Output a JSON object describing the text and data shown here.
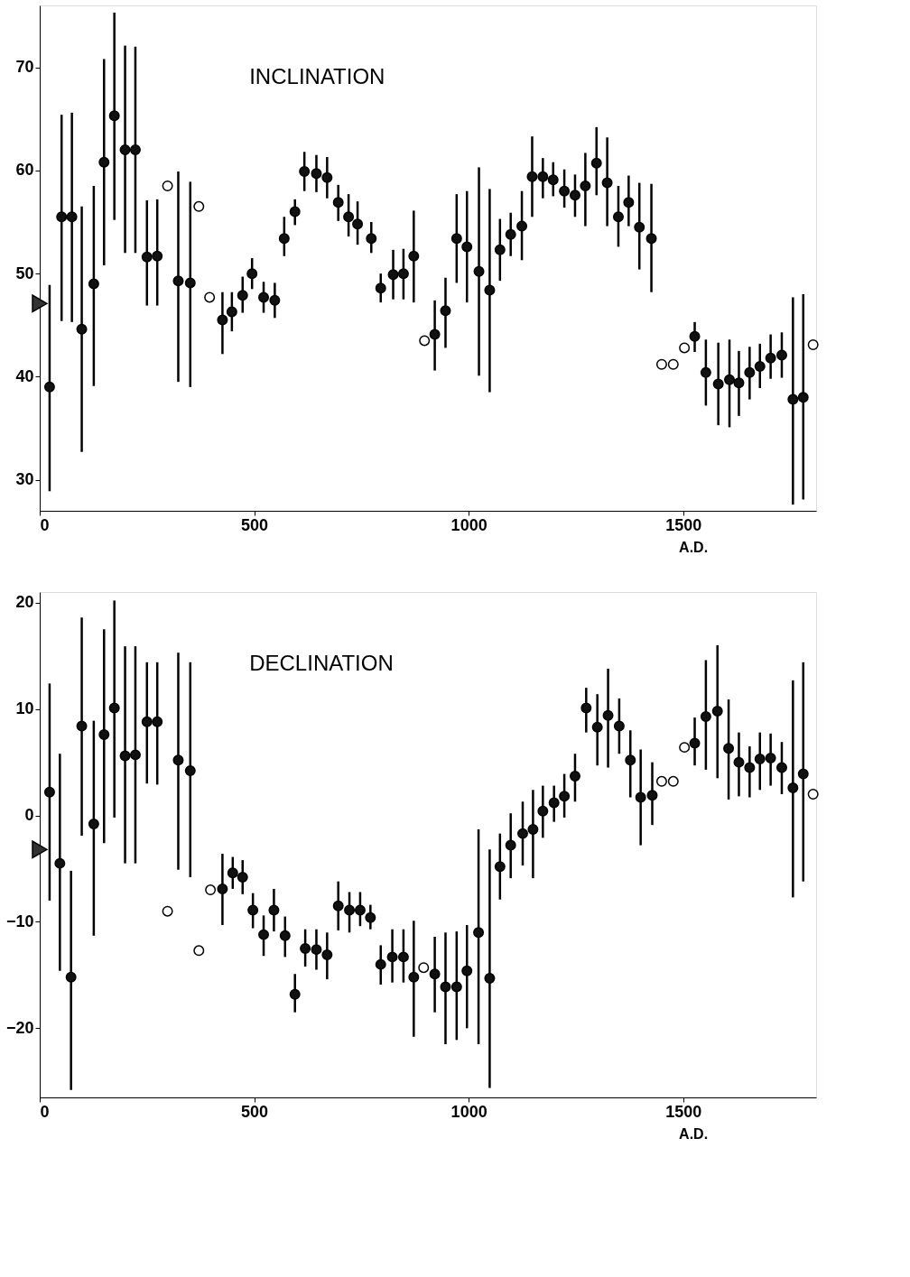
{
  "chart_data": [
    {
      "type": "scatter",
      "title": "INCLINATION",
      "xlabel": "A.D.",
      "xlim": [
        0,
        1810
      ],
      "xticks": [
        0,
        500,
        1000,
        1500
      ],
      "ylim": [
        27,
        76
      ],
      "yticks": [
        30,
        40,
        50,
        60,
        70
      ],
      "grid": false,
      "series": [
        {
          "color": "#111111",
          "marker": "circle",
          "x": [
            23,
            51,
            75,
            98,
            126,
            150,
            174,
            199,
            223,
            250,
            274,
            323,
            351,
            426,
            448,
            473,
            495,
            522,
            548,
            570,
            595,
            617,
            645,
            670,
            696,
            720,
            741,
            773,
            795,
            824,
            848,
            872,
            921,
            946,
            972,
            996,
            1024,
            1049,
            1073,
            1098,
            1124,
            1148,
            1173,
            1197,
            1223,
            1248,
            1272,
            1298,
            1323,
            1349,
            1373,
            1398,
            1426,
            1527,
            1553,
            1582,
            1608,
            1630,
            1655,
            1679,
            1704,
            1730,
            1756,
            1780
          ],
          "values": [
            39.0,
            55.5,
            55.5,
            44.6,
            49.0,
            60.8,
            65.3,
            62.0,
            62.0,
            51.6,
            51.7,
            49.3,
            49.1,
            45.5,
            46.3,
            47.9,
            50.0,
            47.7,
            47.4,
            53.4,
            56.0,
            59.9,
            59.7,
            59.3,
            56.9,
            55.5,
            54.8,
            53.4,
            48.6,
            49.9,
            50.0,
            51.7,
            44.1,
            46.4,
            53.4,
            52.6,
            50.2,
            48.4,
            52.3,
            53.8,
            54.6,
            59.4,
            59.4,
            59.1,
            58.0,
            57.6,
            58.5,
            60.7,
            58.8,
            55.5,
            56.9,
            54.5,
            53.4,
            43.9,
            40.4,
            39.3,
            39.7,
            39.4,
            40.4,
            41.0,
            41.8,
            42.1,
            37.8,
            38.0
          ],
          "errors": [
            [
              28.9,
              48.9
            ],
            [
              45.4,
              65.4
            ],
            [
              45.3,
              65.6
            ],
            [
              32.7,
              56.5
            ],
            [
              39.1,
              58.5
            ],
            [
              50.8,
              70.8
            ],
            [
              55.2,
              75.3
            ],
            [
              52.0,
              72.1
            ],
            [
              52.0,
              72.0
            ],
            [
              46.9,
              57.1
            ],
            [
              46.9,
              57.2
            ],
            [
              39.5,
              59.9
            ],
            [
              39.0,
              58.9
            ],
            [
              42.2,
              48.2
            ],
            [
              44.4,
              48.2
            ],
            [
              46.2,
              49.7
            ],
            [
              48.5,
              51.5
            ],
            [
              46.2,
              49.2
            ],
            [
              45.7,
              49.1
            ],
            [
              51.7,
              55.5
            ],
            [
              54.7,
              57.2
            ],
            [
              58.0,
              61.8
            ],
            [
              57.9,
              61.5
            ],
            [
              57.3,
              61.3
            ],
            [
              55.1,
              58.6
            ],
            [
              53.6,
              57.7
            ],
            [
              52.8,
              57.0
            ],
            [
              52.0,
              55.0
            ],
            [
              47.2,
              50.0
            ],
            [
              47.5,
              52.3
            ],
            [
              47.5,
              52.4
            ],
            [
              47.2,
              56.1
            ],
            [
              40.6,
              47.4
            ],
            [
              42.8,
              49.6
            ],
            [
              49.1,
              57.7
            ],
            [
              47.2,
              58.0
            ],
            [
              40.1,
              60.3
            ],
            [
              38.5,
              58.2
            ],
            [
              49.3,
              55.3
            ],
            [
              51.7,
              55.9
            ],
            [
              51.3,
              58.0
            ],
            [
              55.5,
              63.3
            ],
            [
              57.3,
              61.2
            ],
            [
              57.5,
              60.8
            ],
            [
              56.4,
              60.1
            ],
            [
              55.5,
              59.6
            ],
            [
              54.6,
              61.7
            ],
            [
              57.6,
              64.2
            ],
            [
              54.6,
              63.2
            ],
            [
              52.6,
              58.5
            ],
            [
              54.6,
              59.5
            ],
            [
              50.4,
              58.8
            ],
            [
              48.2,
              58.7
            ],
            [
              42.4,
              45.3
            ],
            [
              37.2,
              43.6
            ],
            [
              35.3,
              43.3
            ],
            [
              35.1,
              43.6
            ],
            [
              36.2,
              42.5
            ],
            [
              37.8,
              42.9
            ],
            [
              38.9,
              43.2
            ],
            [
              39.8,
              44.1
            ],
            [
              39.9,
              44.3
            ],
            [
              27.6,
              47.7
            ],
            [
              28.1,
              48.0
            ]
          ]
        },
        {
          "color": "#ffffff",
          "marker": "circle",
          "x": [
            298,
            371,
            396,
            897,
            1450,
            1477,
            1503,
            1803
          ],
          "values": [
            58.5,
            56.5,
            47.7,
            43.5,
            41.2,
            41.2,
            42.8,
            43.1
          ]
        },
        {
          "color": "#333333",
          "marker": "triangle",
          "x": [
            0
          ],
          "values": [
            47.1
          ]
        }
      ]
    },
    {
      "type": "scatter",
      "title": "DECLINATION",
      "xlabel": "A.D.",
      "xlim": [
        0,
        1810
      ],
      "xticks": [
        0,
        500,
        1000,
        1500
      ],
      "ylim": [
        -26.5,
        21
      ],
      "yticks": [
        -20,
        -10,
        0,
        10,
        20
      ],
      "grid": false,
      "series": [
        {
          "color": "#111111",
          "marker": "circle",
          "x": [
            23,
            47,
            73,
            98,
            126,
            150,
            174,
            199,
            223,
            250,
            274,
            323,
            351,
            426,
            450,
            473,
            497,
            522,
            546,
            572,
            595,
            619,
            645,
            670,
            696,
            722,
            747,
            771,
            795,
            822,
            848,
            872,
            921,
            946,
            972,
            996,
            1023,
            1049,
            1073,
            1098,
            1126,
            1150,
            1173,
            1199,
            1223,
            1248,
            1274,
            1300,
            1325,
            1351,
            1377,
            1401,
            1428,
            1527,
            1553,
            1580,
            1606,
            1630,
            1655,
            1679,
            1704,
            1730,
            1756,
            1780
          ],
          "values": [
            2.2,
            -4.5,
            -15.2,
            8.4,
            -0.8,
            7.6,
            10.1,
            5.6,
            5.7,
            8.8,
            8.8,
            5.2,
            4.2,
            -6.9,
            -5.4,
            -5.8,
            -8.9,
            -11.2,
            -8.9,
            -11.3,
            -16.8,
            -12.5,
            -12.6,
            -13.1,
            -8.5,
            -8.9,
            -8.9,
            -9.6,
            -14.0,
            -13.3,
            -13.3,
            -15.2,
            -14.9,
            -16.1,
            -16.1,
            -14.6,
            -11.0,
            -15.3,
            -4.8,
            -2.8,
            -1.7,
            -1.3,
            0.4,
            1.2,
            1.8,
            3.7,
            10.1,
            8.3,
            9.4,
            8.4,
            5.2,
            1.7,
            1.9,
            6.8,
            9.3,
            9.8,
            6.3,
            5.0,
            4.5,
            5.3,
            5.4,
            4.5,
            2.6,
            3.9
          ],
          "errors": [
            [
              -8.0,
              12.4
            ],
            [
              -14.6,
              5.8
            ],
            [
              -25.8,
              -5.2
            ],
            [
              -1.9,
              18.6
            ],
            [
              -11.3,
              8.9
            ],
            [
              -2.6,
              17.5
            ],
            [
              -0.2,
              20.2
            ],
            [
              -4.5,
              15.9
            ],
            [
              -4.5,
              15.9
            ],
            [
              3.0,
              14.4
            ],
            [
              2.9,
              14.4
            ],
            [
              -5.1,
              15.3
            ],
            [
              -5.8,
              14.4
            ],
            [
              -10.3,
              -3.6
            ],
            [
              -6.9,
              -3.9
            ],
            [
              -7.4,
              -4.2
            ],
            [
              -10.6,
              -7.3
            ],
            [
              -13.2,
              -9.4
            ],
            [
              -10.9,
              -6.9
            ],
            [
              -13.3,
              -9.5
            ],
            [
              -18.5,
              -14.9
            ],
            [
              -14.2,
              -10.7
            ],
            [
              -14.5,
              -10.7
            ],
            [
              -15.4,
              -11.0
            ],
            [
              -10.8,
              -6.2
            ],
            [
              -11.0,
              -7.2
            ],
            [
              -10.4,
              -7.2
            ],
            [
              -10.7,
              -8.4
            ],
            [
              -15.9,
              -12.2
            ],
            [
              -15.7,
              -10.7
            ],
            [
              -15.7,
              -10.7
            ],
            [
              -20.8,
              -9.9
            ],
            [
              -18.5,
              -11.4
            ],
            [
              -21.5,
              -11.0
            ],
            [
              -21.1,
              -10.9
            ],
            [
              -20.0,
              -10.3
            ],
            [
              -21.5,
              -1.3
            ],
            [
              -25.6,
              -3.2
            ],
            [
              -7.9,
              -1.7
            ],
            [
              -5.9,
              0.2
            ],
            [
              -4.7,
              1.3
            ],
            [
              -5.9,
              2.4
            ],
            [
              -2.1,
              2.8
            ],
            [
              -0.6,
              2.8
            ],
            [
              -0.2,
              3.9
            ],
            [
              1.3,
              5.8
            ],
            [
              7.8,
              12.0
            ],
            [
              4.7,
              11.4
            ],
            [
              4.5,
              13.8
            ],
            [
              5.8,
              11.0
            ],
            [
              1.7,
              8.0
            ],
            [
              -2.8,
              6.2
            ],
            [
              -0.9,
              5.0
            ],
            [
              4.7,
              9.2
            ],
            [
              4.3,
              14.6
            ],
            [
              3.5,
              16.0
            ],
            [
              1.5,
              10.9
            ],
            [
              1.8,
              7.8
            ],
            [
              1.7,
              6.5
            ],
            [
              2.4,
              7.8
            ],
            [
              2.8,
              7.7
            ],
            [
              2.0,
              6.9
            ],
            [
              -7.7,
              12.7
            ],
            [
              -6.2,
              14.4
            ]
          ]
        },
        {
          "color": "#ffffff",
          "marker": "circle",
          "x": [
            298,
            371,
            398,
            895,
            1450,
            1477,
            1503,
            1803
          ],
          "values": [
            -9.0,
            -12.7,
            -7.0,
            -14.3,
            3.2,
            3.2,
            6.4,
            2.0
          ]
        },
        {
          "color": "#333333",
          "marker": "triangle",
          "x": [
            0
          ],
          "values": [
            -3.2
          ]
        }
      ]
    }
  ]
}
